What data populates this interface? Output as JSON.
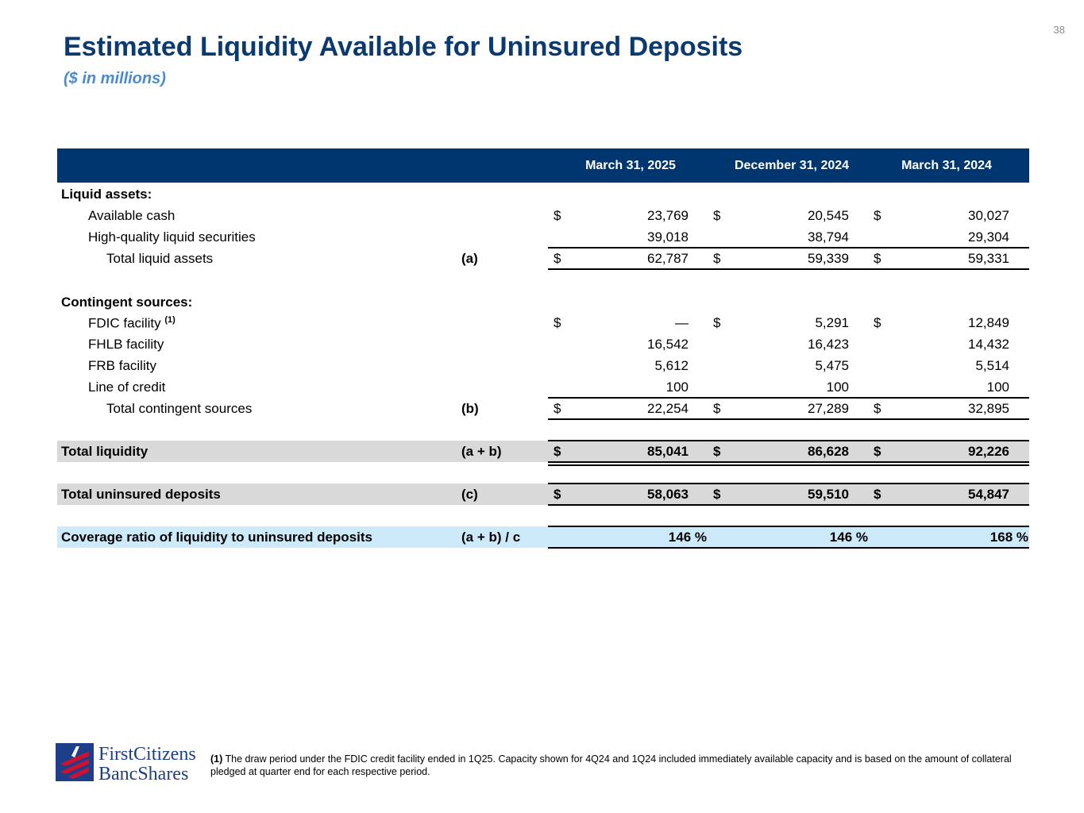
{
  "page_number": "38",
  "title": "Estimated Liquidity Available for Uninsured Deposits",
  "subtitle": "($ in millions)",
  "columns": [
    "March 31, 2025",
    "December 31, 2024",
    "March 31, 2024"
  ],
  "rows": {
    "liquid_header": "Liquid assets:",
    "available_cash": {
      "label": "Available cash",
      "values": [
        "23,769",
        "20,545",
        "30,027"
      ]
    },
    "hqls": {
      "label": "High-quality liquid securities",
      "values": [
        "39,018",
        "38,794",
        "29,304"
      ]
    },
    "total_liquid": {
      "label": "Total liquid assets",
      "ref": "(a)",
      "values": [
        "62,787",
        "59,339",
        "59,331"
      ]
    },
    "contingent_header": "Contingent sources:",
    "fdic": {
      "label": "FDIC facility",
      "note": "(1)",
      "values": [
        "—",
        "5,291",
        "12,849"
      ]
    },
    "fhlb": {
      "label": "FHLB facility",
      "values": [
        "16,542",
        "16,423",
        "14,432"
      ]
    },
    "frb": {
      "label": "FRB facility",
      "values": [
        "5,612",
        "5,475",
        "5,514"
      ]
    },
    "loc": {
      "label": "Line of credit",
      "values": [
        "100",
        "100",
        "100"
      ]
    },
    "total_contingent": {
      "label": "Total contingent sources",
      "ref": "(b)",
      "values": [
        "22,254",
        "27,289",
        "32,895"
      ]
    },
    "total_liquidity": {
      "label": "Total liquidity",
      "ref": "(a + b)",
      "values": [
        "85,041",
        "86,628",
        "92,226"
      ]
    },
    "total_uninsured": {
      "label": "Total uninsured deposits",
      "ref": "(c)",
      "values": [
        "58,063",
        "59,510",
        "54,847"
      ]
    },
    "coverage": {
      "label": "Coverage ratio of liquidity to uninsured deposits",
      "ref": "(a + b) / c",
      "values": [
        "146 %",
        "146 %",
        "168 %"
      ]
    }
  },
  "currency": "$",
  "footnote": {
    "marker": "(1)",
    "text": " The draw period under the FDIC credit facility ended in 1Q25. Capacity shown for 4Q24 and 1Q24 included  immediately available capacity and is based on the amount of collateral pledged at quarter end for each respective period."
  },
  "logo": {
    "line1": "FirstCitizens",
    "line2": "BancShares",
    "brand_red": "#d0102e",
    "brand_blue": "#1d3f8a"
  }
}
